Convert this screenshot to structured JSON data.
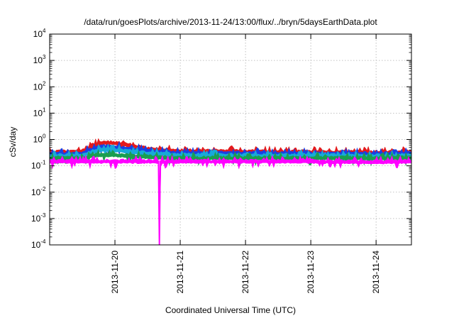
{
  "chart_data": {
    "type": "area",
    "title": "/data/run/goesPlots/archive/2013-11-24/13:00/flux/../bryn/5daysEarthData.plot",
    "xlabel": "Coordinated Universal Time (UTC)",
    "ylabel": "cSv/day",
    "yscale": "log",
    "ylim": [
      0.0001,
      10000
    ],
    "xlim": [
      "2013-11-19T00:00",
      "2013-11-24T13:00"
    ],
    "grid": true,
    "x_ticks": [
      "2013-11-20",
      "2013-11-21",
      "2013-11-22",
      "2013-11-23",
      "2013-11-24"
    ],
    "y_ticks": [
      {
        "value": 0.0001,
        "base": "10",
        "exp": "-4"
      },
      {
        "value": 0.001,
        "base": "10",
        "exp": "-3"
      },
      {
        "value": 0.01,
        "base": "10",
        "exp": "-2"
      },
      {
        "value": 0.1,
        "base": "10",
        "exp": "-1"
      },
      {
        "value": 1,
        "base": "10",
        "exp": "0"
      },
      {
        "value": 10,
        "base": "10",
        "exp": "1"
      },
      {
        "value": 100,
        "base": "10",
        "exp": "2"
      },
      {
        "value": 1000,
        "base": "10",
        "exp": "3"
      },
      {
        "value": 10000,
        "base": "10",
        "exp": "4"
      }
    ],
    "series": [
      {
        "color": "#e41a1c",
        "x": [
          "2013-11-19T00:00",
          "2013-11-19T12:00",
          "2013-11-19T16:00",
          "2013-11-19T20:00",
          "2013-11-20T00:00",
          "2013-11-20T06:00",
          "2013-11-20T12:00",
          "2013-11-21T00:00",
          "2013-11-22T00:00",
          "2013-11-23T00:00",
          "2013-11-24T00:00",
          "2013-11-24T13:00"
        ],
        "values": [
          0.33,
          0.36,
          0.62,
          0.78,
          0.75,
          0.6,
          0.45,
          0.38,
          0.35,
          0.34,
          0.33,
          0.34
        ]
      },
      {
        "color": "#1a3fe4",
        "x": [
          "2013-11-19T00:00",
          "2013-11-19T12:00",
          "2013-11-19T16:00",
          "2013-11-19T20:00",
          "2013-11-20T00:00",
          "2013-11-20T06:00",
          "2013-11-20T12:00",
          "2013-11-21T00:00",
          "2013-11-22T00:00",
          "2013-11-23T00:00",
          "2013-11-24T00:00",
          "2013-11-24T13:00"
        ],
        "values": [
          0.28,
          0.3,
          0.45,
          0.55,
          0.52,
          0.45,
          0.37,
          0.31,
          0.3,
          0.29,
          0.29,
          0.3
        ]
      },
      {
        "color": "#18a9d8",
        "x": [
          "2013-11-19T00:00",
          "2013-11-19T12:00",
          "2013-11-19T16:00",
          "2013-11-19T20:00",
          "2013-11-20T00:00",
          "2013-11-20T06:00",
          "2013-11-20T12:00",
          "2013-11-21T00:00",
          "2013-11-22T00:00",
          "2013-11-23T00:00",
          "2013-11-24T00:00",
          "2013-11-24T13:00"
        ],
        "values": [
          0.24,
          0.25,
          0.36,
          0.42,
          0.4,
          0.35,
          0.3,
          0.26,
          0.25,
          0.25,
          0.24,
          0.25
        ]
      },
      {
        "color": "#1a9e50",
        "x": [
          "2013-11-19T00:00",
          "2013-11-19T12:00",
          "2013-11-19T16:00",
          "2013-11-19T20:00",
          "2013-11-20T00:00",
          "2013-11-20T06:00",
          "2013-11-20T12:00",
          "2013-11-21T00:00",
          "2013-11-22T00:00",
          "2013-11-23T00:00",
          "2013-11-24T00:00",
          "2013-11-24T13:00"
        ],
        "values": [
          0.2,
          0.2,
          0.25,
          0.27,
          0.26,
          0.24,
          0.22,
          0.2,
          0.2,
          0.2,
          0.2,
          0.2
        ]
      },
      {
        "color": "#ff00ff",
        "x": [
          "2013-11-19T00:00",
          "2013-11-20T00:00",
          "2013-11-20T16:00",
          "2013-11-20T16:20",
          "2013-11-20T16:40",
          "2013-11-21T00:00",
          "2013-11-22T00:00",
          "2013-11-23T00:00",
          "2013-11-24T00:00",
          "2013-11-24T13:00"
        ],
        "values": [
          0.15,
          0.15,
          0.15,
          0.0001,
          0.15,
          0.15,
          0.15,
          0.15,
          0.14,
          0.15
        ]
      }
    ]
  }
}
